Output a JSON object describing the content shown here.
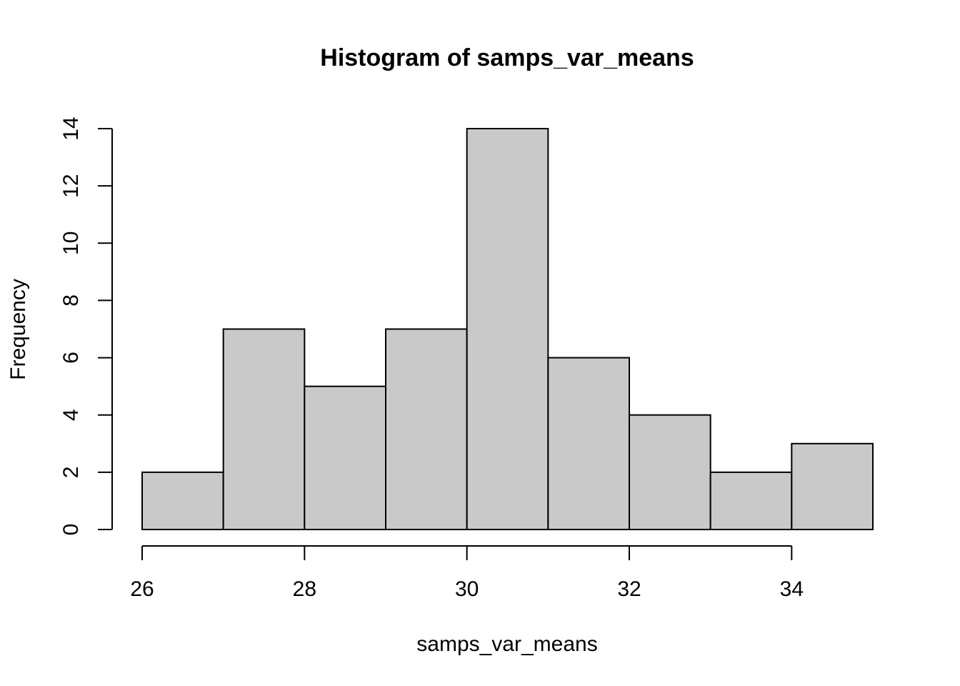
{
  "chart_data": {
    "type": "histogram",
    "title": "Histogram of samps_var_means",
    "xlabel": "samps_var_means",
    "ylabel": "Frequency",
    "bins": [
      {
        "start": 26,
        "end": 27,
        "count": 2
      },
      {
        "start": 27,
        "end": 28,
        "count": 7
      },
      {
        "start": 28,
        "end": 29,
        "count": 5
      },
      {
        "start": 29,
        "end": 30,
        "count": 7
      },
      {
        "start": 30,
        "end": 31,
        "count": 14
      },
      {
        "start": 31,
        "end": 32,
        "count": 6
      },
      {
        "start": 32,
        "end": 33,
        "count": 4
      },
      {
        "start": 33,
        "end": 34,
        "count": 2
      },
      {
        "start": 34,
        "end": 35,
        "count": 3
      }
    ],
    "x_ticks": [
      26,
      28,
      30,
      32,
      34
    ],
    "y_ticks": [
      0,
      2,
      4,
      6,
      8,
      10,
      12,
      14
    ],
    "xlim": [
      26,
      35
    ],
    "ylim": [
      0,
      14
    ],
    "grid": false,
    "colors": {
      "bar_fill": "#c9c9c9",
      "bar_stroke": "#000000"
    }
  }
}
